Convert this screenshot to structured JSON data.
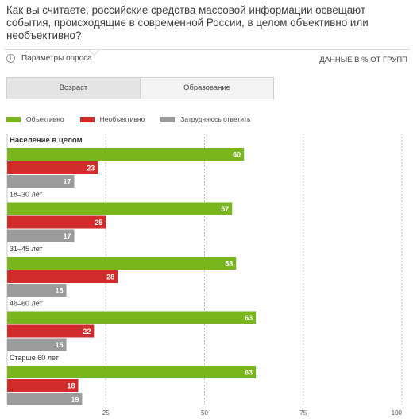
{
  "title": "Как вы считаете, российские средства массовой информации освещают события, происходящие в современной России, в целом объективно или необъективно?",
  "params_label": "Параметры опроса",
  "units_label": "ДАННЫЕ В % ОТ ГРУПП",
  "tabs": [
    {
      "label": "Возраст",
      "active": true
    },
    {
      "label": "Образование",
      "active": false
    }
  ],
  "colors": {
    "objective": "#79b61d",
    "not_objective": "#d12b2b",
    "unsure": "#9b9b9b"
  },
  "chart_data": {
    "type": "bar",
    "orientation": "horizontal",
    "categories": [
      "Население в целом",
      "18–30 лет",
      "31–45 лет",
      "46–60 лет",
      "Старше 60 лет"
    ],
    "series": [
      {
        "name": "Объективно",
        "values": [
          60,
          57,
          58,
          63,
          63
        ]
      },
      {
        "name": "Необъективно",
        "values": [
          23,
          25,
          28,
          22,
          18
        ]
      },
      {
        "name": "Затрудняюсь ответить",
        "values": [
          17,
          17,
          15,
          15,
          19
        ]
      }
    ],
    "xlim": [
      0,
      100
    ],
    "xticks": [
      0,
      25,
      50,
      75,
      100
    ],
    "grid": true,
    "legend": "top-left"
  }
}
